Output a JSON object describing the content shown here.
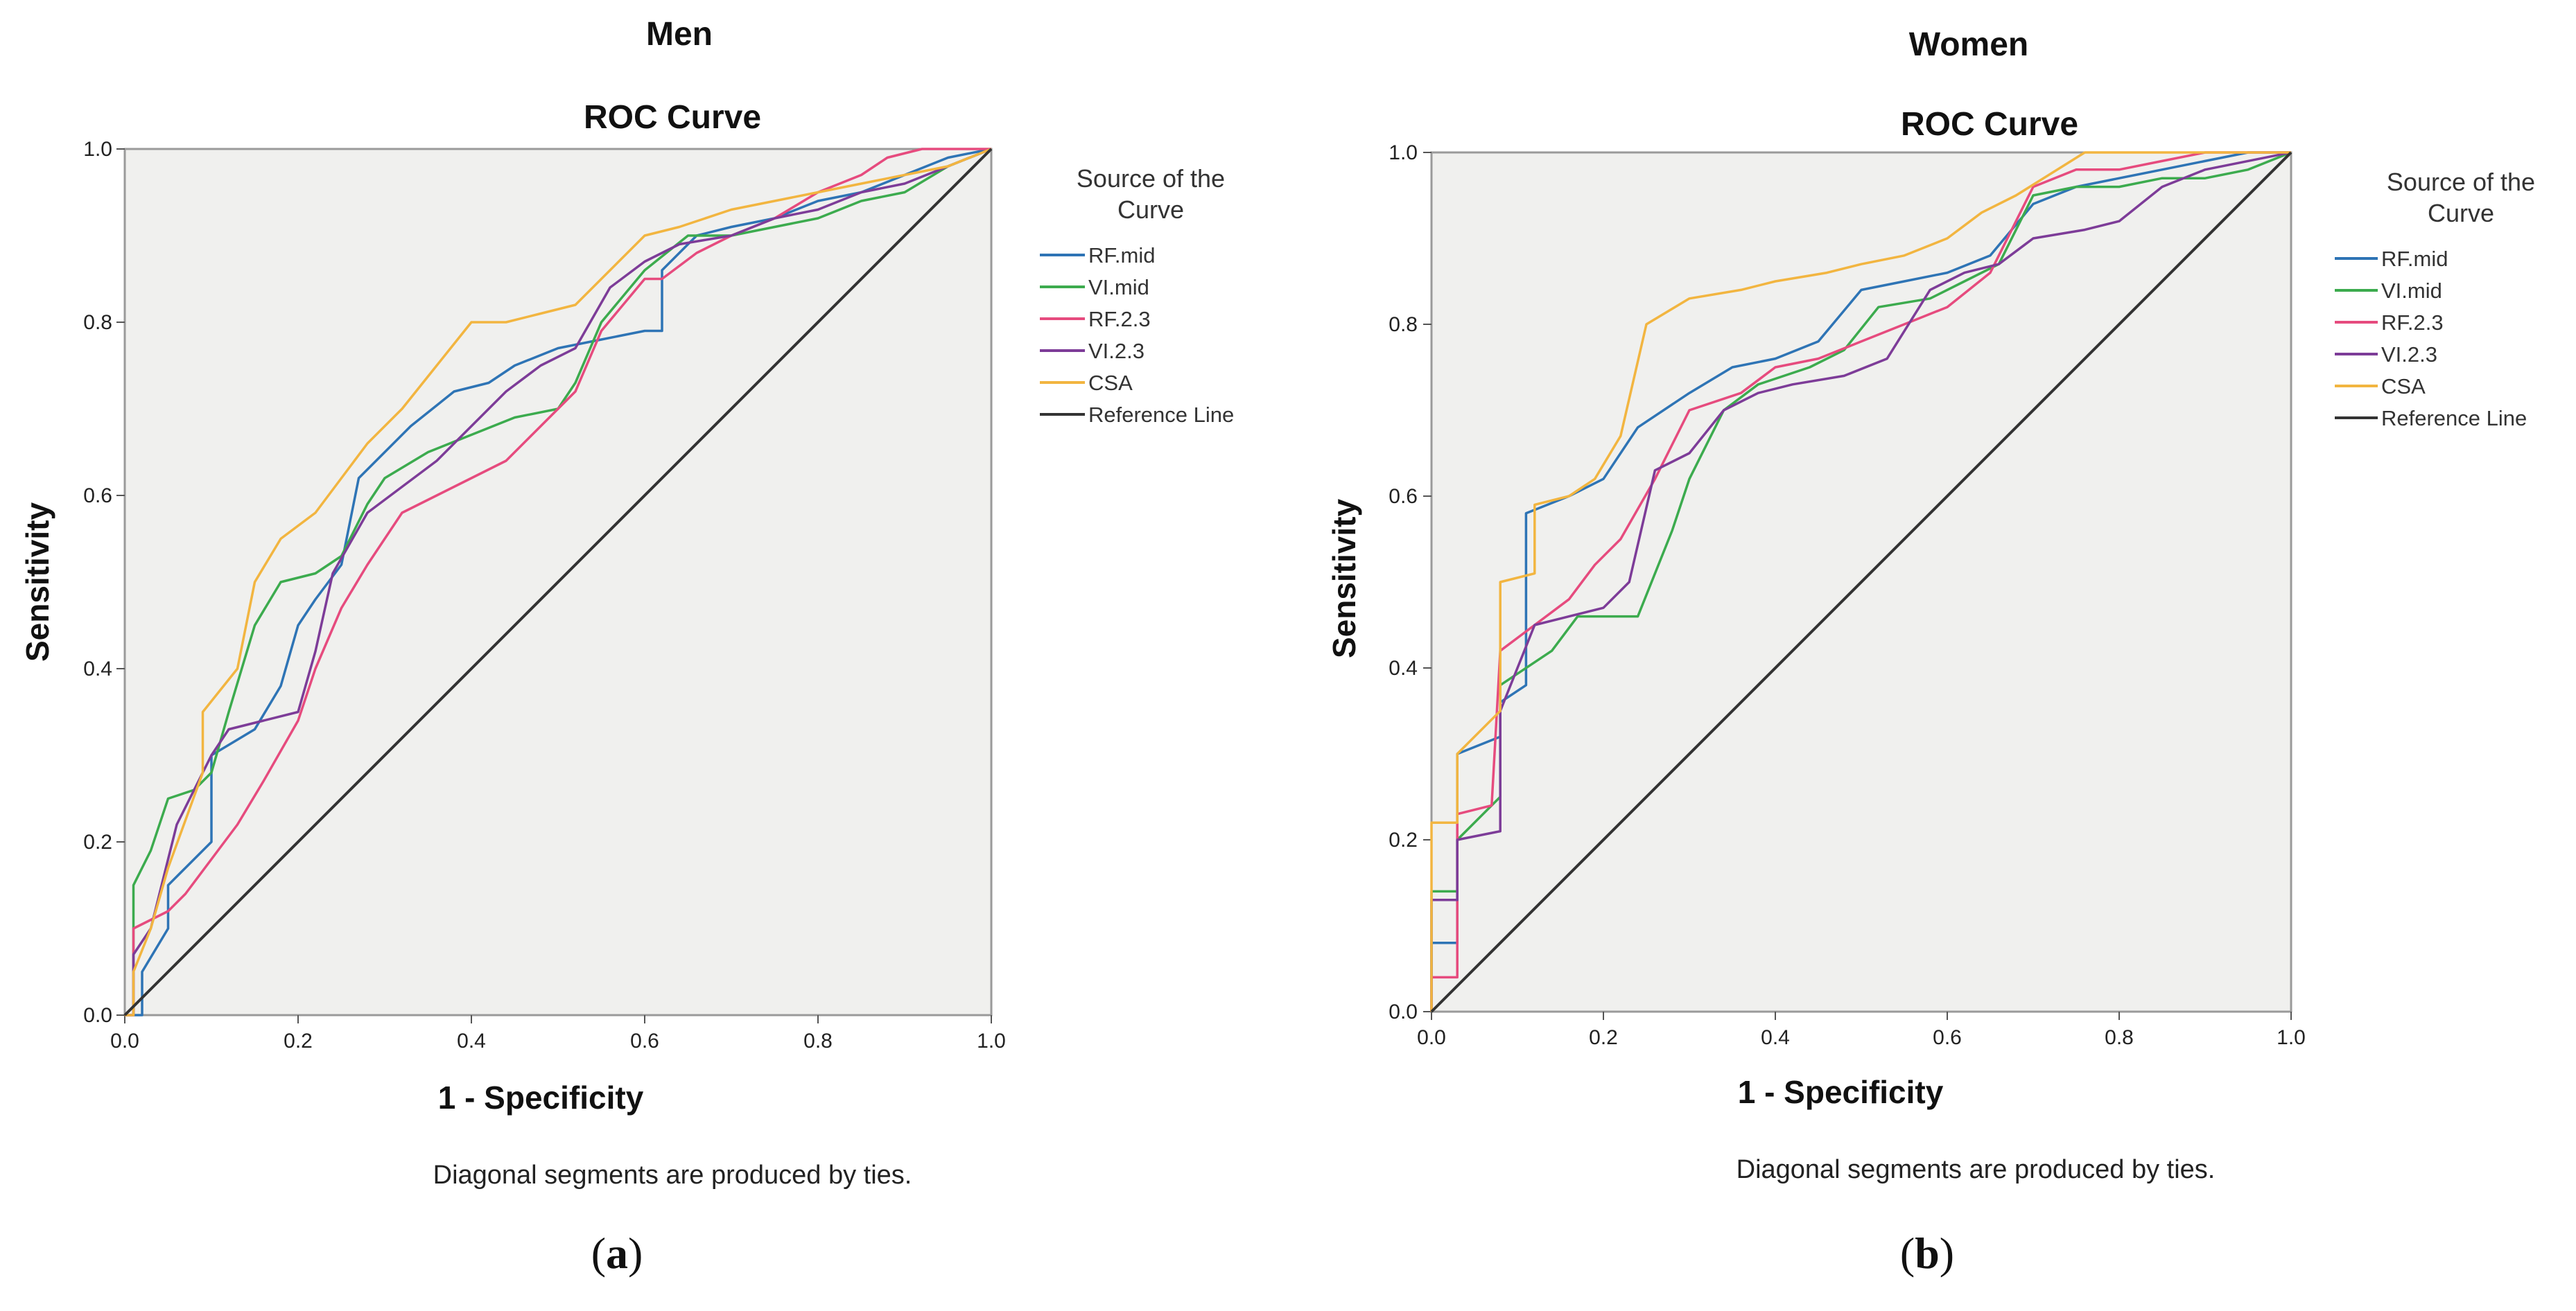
{
  "figure": {
    "panels": [
      {
        "panel_title": "Men",
        "chart_title": "ROC Curve",
        "xlabel": "1 - Specificity",
        "ylabel": "Sensitivity",
        "legend_title_line1": "Source of the",
        "legend_title_line2": "Curve",
        "footnote": "Diagonal segments are produced by ties.",
        "panel_label_prefix": "(",
        "panel_label_letter": "a",
        "panel_label_suffix": ")"
      },
      {
        "panel_title": "Women",
        "chart_title": "ROC Curve",
        "xlabel": "1 - Specificity",
        "ylabel": "Sensitivity",
        "legend_title_line1": "Source of the",
        "legend_title_line2": "Curve",
        "footnote": "Diagonal segments are produced by ties.",
        "panel_label_prefix": "(",
        "panel_label_letter": "b",
        "panel_label_suffix": ")"
      }
    ],
    "colors": {
      "RF.mid": "#2e74b5",
      "VI.mid": "#3cab4e",
      "RF.2.3": "#e64b7e",
      "VI.2.3": "#7d3c98",
      "CSA": "#f2b540",
      "Reference Line": "#333333",
      "plot_bg": "#f0f0ee",
      "frame": "#9a9a9a"
    }
  },
  "chart_data": [
    {
      "type": "line",
      "title": "ROC Curve",
      "panel": "Men",
      "xlabel": "1 - Specificity",
      "ylabel": "Sensitivity",
      "xlim": [
        0,
        1
      ],
      "ylim": [
        0,
        1
      ],
      "xticks": [
        "0.0",
        "0.2",
        "0.4",
        "0.6",
        "0.8",
        "1.0"
      ],
      "yticks": [
        "0.0",
        "0.2",
        "0.4",
        "0.6",
        "0.8",
        "1.0"
      ],
      "series": [
        {
          "name": "RF.mid",
          "x": [
            0,
            0.02,
            0.02,
            0.05,
            0.05,
            0.1,
            0.1,
            0.15,
            0.18,
            0.2,
            0.22,
            0.25,
            0.27,
            0.3,
            0.33,
            0.38,
            0.42,
            0.45,
            0.5,
            0.55,
            0.6,
            0.62,
            0.62,
            0.66,
            0.7,
            0.75,
            0.8,
            0.85,
            0.9,
            0.95,
            1.0
          ],
          "y": [
            0,
            0,
            0.05,
            0.1,
            0.15,
            0.2,
            0.3,
            0.33,
            0.38,
            0.45,
            0.48,
            0.52,
            0.62,
            0.65,
            0.68,
            0.72,
            0.73,
            0.75,
            0.77,
            0.78,
            0.79,
            0.79,
            0.86,
            0.9,
            0.91,
            0.92,
            0.94,
            0.95,
            0.97,
            0.99,
            1.0
          ]
        },
        {
          "name": "VI.mid",
          "x": [
            0,
            0.01,
            0.01,
            0.03,
            0.05,
            0.08,
            0.1,
            0.12,
            0.15,
            0.18,
            0.22,
            0.25,
            0.28,
            0.3,
            0.35,
            0.4,
            0.45,
            0.5,
            0.52,
            0.55,
            0.6,
            0.65,
            0.7,
            0.75,
            0.8,
            0.85,
            0.9,
            0.95,
            1.0
          ],
          "y": [
            0,
            0,
            0.15,
            0.19,
            0.25,
            0.26,
            0.28,
            0.35,
            0.45,
            0.5,
            0.51,
            0.53,
            0.59,
            0.62,
            0.65,
            0.67,
            0.69,
            0.7,
            0.73,
            0.8,
            0.86,
            0.9,
            0.9,
            0.91,
            0.92,
            0.94,
            0.95,
            0.98,
            1.0
          ]
        },
        {
          "name": "RF.2.3",
          "x": [
            0,
            0.01,
            0.01,
            0.05,
            0.07,
            0.1,
            0.13,
            0.16,
            0.2,
            0.22,
            0.25,
            0.28,
            0.32,
            0.36,
            0.4,
            0.44,
            0.48,
            0.52,
            0.55,
            0.6,
            0.62,
            0.66,
            0.7,
            0.75,
            0.8,
            0.85,
            0.88,
            0.92,
            0.96,
            1.0
          ],
          "y": [
            0,
            0,
            0.1,
            0.12,
            0.14,
            0.18,
            0.22,
            0.27,
            0.34,
            0.4,
            0.47,
            0.52,
            0.58,
            0.6,
            0.62,
            0.64,
            0.68,
            0.72,
            0.79,
            0.85,
            0.85,
            0.88,
            0.9,
            0.92,
            0.95,
            0.97,
            0.99,
            1.0,
            1.0,
            1.0
          ]
        },
        {
          "name": "VI.2.3",
          "x": [
            0,
            0.01,
            0.01,
            0.03,
            0.06,
            0.1,
            0.12,
            0.16,
            0.2,
            0.22,
            0.24,
            0.28,
            0.32,
            0.36,
            0.4,
            0.44,
            0.48,
            0.52,
            0.56,
            0.6,
            0.64,
            0.7,
            0.75,
            0.8,
            0.85,
            0.9,
            0.95,
            1.0
          ],
          "y": [
            0,
            0,
            0.07,
            0.1,
            0.22,
            0.3,
            0.33,
            0.34,
            0.35,
            0.42,
            0.51,
            0.58,
            0.61,
            0.64,
            0.68,
            0.72,
            0.75,
            0.77,
            0.84,
            0.87,
            0.89,
            0.9,
            0.92,
            0.93,
            0.95,
            0.96,
            0.98,
            1.0
          ]
        },
        {
          "name": "CSA",
          "x": [
            0,
            0.01,
            0.01,
            0.03,
            0.05,
            0.09,
            0.09,
            0.13,
            0.15,
            0.18,
            0.22,
            0.25,
            0.28,
            0.32,
            0.36,
            0.4,
            0.44,
            0.48,
            0.52,
            0.56,
            0.6,
            0.64,
            0.7,
            0.75,
            0.8,
            0.85,
            0.9,
            0.95,
            1.0
          ],
          "y": [
            0,
            0,
            0.05,
            0.1,
            0.17,
            0.28,
            0.35,
            0.4,
            0.5,
            0.55,
            0.58,
            0.62,
            0.66,
            0.7,
            0.75,
            0.8,
            0.8,
            0.81,
            0.82,
            0.86,
            0.9,
            0.91,
            0.93,
            0.94,
            0.95,
            0.96,
            0.97,
            0.98,
            1.0
          ]
        },
        {
          "name": "Reference Line",
          "x": [
            0,
            1
          ],
          "y": [
            0,
            1
          ]
        }
      ]
    },
    {
      "type": "line",
      "title": "ROC Curve",
      "panel": "Women",
      "xlabel": "1 - Specificity",
      "ylabel": "Sensitivity",
      "xlim": [
        0,
        1
      ],
      "ylim": [
        0,
        1
      ],
      "xticks": [
        "0.0",
        "0.2",
        "0.4",
        "0.6",
        "0.8",
        "1.0"
      ],
      "yticks": [
        "0.0",
        "0.2",
        "0.4",
        "0.6",
        "0.8",
        "1.0"
      ],
      "series": [
        {
          "name": "RF.mid",
          "x": [
            0,
            0.0,
            0.03,
            0.03,
            0.08,
            0.08,
            0.11,
            0.11,
            0.16,
            0.2,
            0.24,
            0.3,
            0.35,
            0.4,
            0.45,
            0.5,
            0.55,
            0.6,
            0.65,
            0.7,
            0.75,
            0.8,
            0.85,
            0.9,
            0.95,
            1.0
          ],
          "y": [
            0,
            0.08,
            0.08,
            0.3,
            0.32,
            0.36,
            0.38,
            0.58,
            0.6,
            0.62,
            0.68,
            0.72,
            0.75,
            0.76,
            0.78,
            0.84,
            0.85,
            0.86,
            0.88,
            0.94,
            0.96,
            0.97,
            0.98,
            0.99,
            1.0,
            1.0
          ]
        },
        {
          "name": "VI.mid",
          "x": [
            0,
            0.0,
            0.03,
            0.03,
            0.08,
            0.08,
            0.14,
            0.17,
            0.24,
            0.28,
            0.3,
            0.34,
            0.38,
            0.44,
            0.48,
            0.52,
            0.58,
            0.62,
            0.66,
            0.7,
            0.75,
            0.8,
            0.85,
            0.9,
            0.95,
            1.0
          ],
          "y": [
            0,
            0.14,
            0.14,
            0.2,
            0.25,
            0.38,
            0.42,
            0.46,
            0.46,
            0.56,
            0.62,
            0.7,
            0.73,
            0.75,
            0.77,
            0.82,
            0.83,
            0.85,
            0.87,
            0.95,
            0.96,
            0.96,
            0.97,
            0.97,
            0.98,
            1.0
          ]
        },
        {
          "name": "RF.2.3",
          "x": [
            0,
            0.0,
            0.03,
            0.03,
            0.07,
            0.08,
            0.12,
            0.16,
            0.19,
            0.22,
            0.26,
            0.3,
            0.36,
            0.4,
            0.45,
            0.5,
            0.55,
            0.6,
            0.65,
            0.7,
            0.75,
            0.8,
            0.85,
            0.9,
            0.95,
            1.0
          ],
          "y": [
            0,
            0.04,
            0.04,
            0.23,
            0.24,
            0.42,
            0.45,
            0.48,
            0.52,
            0.55,
            0.62,
            0.7,
            0.72,
            0.75,
            0.76,
            0.78,
            0.8,
            0.82,
            0.86,
            0.96,
            0.98,
            0.98,
            0.99,
            1.0,
            1.0,
            1.0
          ]
        },
        {
          "name": "VI.2.3",
          "x": [
            0,
            0.0,
            0.03,
            0.03,
            0.08,
            0.08,
            0.12,
            0.16,
            0.2,
            0.23,
            0.26,
            0.3,
            0.34,
            0.38,
            0.42,
            0.48,
            0.53,
            0.58,
            0.62,
            0.66,
            0.7,
            0.76,
            0.8,
            0.85,
            0.9,
            1.0
          ],
          "y": [
            0,
            0.13,
            0.13,
            0.2,
            0.21,
            0.35,
            0.45,
            0.46,
            0.47,
            0.5,
            0.63,
            0.65,
            0.7,
            0.72,
            0.73,
            0.74,
            0.76,
            0.84,
            0.86,
            0.87,
            0.9,
            0.91,
            0.92,
            0.96,
            0.98,
            1.0
          ]
        },
        {
          "name": "CSA",
          "x": [
            0,
            0.0,
            0.03,
            0.03,
            0.08,
            0.08,
            0.12,
            0.12,
            0.16,
            0.19,
            0.22,
            0.25,
            0.3,
            0.36,
            0.4,
            0.46,
            0.5,
            0.55,
            0.6,
            0.64,
            0.68,
            0.76,
            1.0
          ],
          "y": [
            0,
            0.22,
            0.22,
            0.3,
            0.35,
            0.5,
            0.51,
            0.59,
            0.6,
            0.62,
            0.67,
            0.8,
            0.83,
            0.84,
            0.85,
            0.86,
            0.87,
            0.88,
            0.9,
            0.93,
            0.95,
            1.0,
            1.0
          ]
        },
        {
          "name": "Reference Line",
          "x": [
            0,
            1
          ],
          "y": [
            0,
            1
          ]
        }
      ]
    }
  ]
}
